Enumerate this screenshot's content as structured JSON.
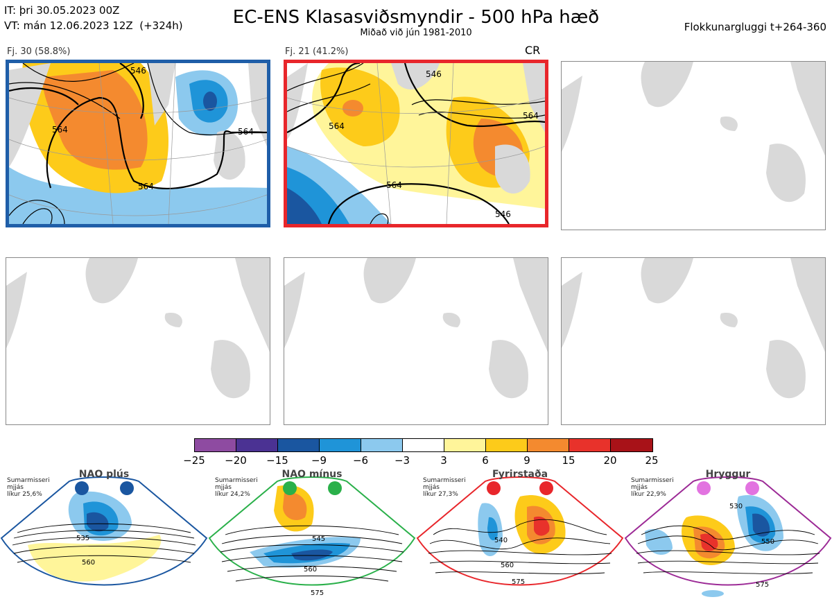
{
  "header": {
    "it_line": "IT: þri 30.05.2023 00Z",
    "vt_line": "VT: mán 12.06.2023 12Z  (+324h)",
    "title": "EC-ENS Klasasviðsmyndir - 500 hPa hæð",
    "subtitle": "Miðað við jún 1981-2010",
    "window": "Flokkunargluggi t+264-360"
  },
  "panels": [
    {
      "label": "Fj. 30 (58.8%)",
      "contours": [
        "546",
        "564",
        "564",
        "564"
      ]
    },
    {
      "label": "Fj. 21 (41.2%)",
      "tag": "CR",
      "contours": [
        "546",
        "564",
        "564",
        "564",
        "546"
      ]
    }
  ],
  "colorbar": {
    "colors": [
      "#8e4ba1",
      "#4b3293",
      "#1a56a0",
      "#1f94d8",
      "#8cc9ee",
      "#ffffff",
      "#fff59a",
      "#fdcb1a",
      "#f48a2f",
      "#e8322b",
      "#a81218"
    ],
    "ticks": [
      "−25",
      "−20",
      "−15",
      "−9",
      "−6",
      "−3",
      "3",
      "6",
      "9",
      "15",
      "20",
      "25"
    ]
  },
  "regimes": [
    {
      "name": "NAO plús",
      "season": "Sumarmisseri",
      "smooth": "mjjás",
      "prob": "líkur 25,6%",
      "color": "#1a56a0",
      "contours": [
        "535",
        "560"
      ]
    },
    {
      "name": "NAO mínus",
      "season": "Sumarmisseri",
      "smooth": "mjjás",
      "prob": "líkur 24,2%",
      "color": "#2ab04a",
      "contours": [
        "545",
        "560",
        "575"
      ]
    },
    {
      "name": "Fyrirstaða",
      "season": "Sumarmisseri",
      "smooth": "mjjás",
      "prob": "líkur 27,3%",
      "color": "#e8262b",
      "contours": [
        "540",
        "560",
        "575"
      ]
    },
    {
      "name": "Hryggur",
      "season": "Sumarmisseri",
      "smooth": "mjjás",
      "prob": "líkur 22,9%",
      "color": "#9c2a96",
      "contours": [
        "530",
        "550",
        "575"
      ]
    }
  ]
}
